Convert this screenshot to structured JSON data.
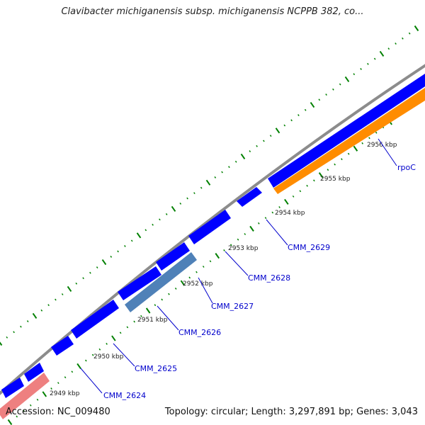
{
  "title": "Clavibacter michiganensis subsp. michiganensis NCPPB 382, co...",
  "accession": "Accession: NC_009480",
  "topology": "Topology: circular; Length: 3,297,891 bp; Genes: 3,043",
  "colors": {
    "backbone": "#8c8c8c",
    "gene_cds": "#0000ff",
    "gene_steelblue": "#4f81b8",
    "gene_orange": "#ff8c00",
    "gene_pink": "#ee8080",
    "tick_major": "#008000",
    "tick_minor": "#008000",
    "label_blue": "#0000cc"
  },
  "ticks": [
    {
      "label": "2949 kbp"
    },
    {
      "label": "2950 kbp"
    },
    {
      "label": "2951 kbp"
    },
    {
      "label": "2952 kbp"
    },
    {
      "label": "2953 kbp"
    },
    {
      "label": "2954 kbp"
    },
    {
      "label": "2955 kbp"
    },
    {
      "label": "2956 kbp"
    }
  ],
  "gene_labels": [
    {
      "label": "CMM_2624"
    },
    {
      "label": "CMM_2625"
    },
    {
      "label": "CMM_2626"
    },
    {
      "label": "CMM_2627"
    },
    {
      "label": "CMM_2628"
    },
    {
      "label": "CMM_2629"
    },
    {
      "label": "rpoC"
    }
  ]
}
